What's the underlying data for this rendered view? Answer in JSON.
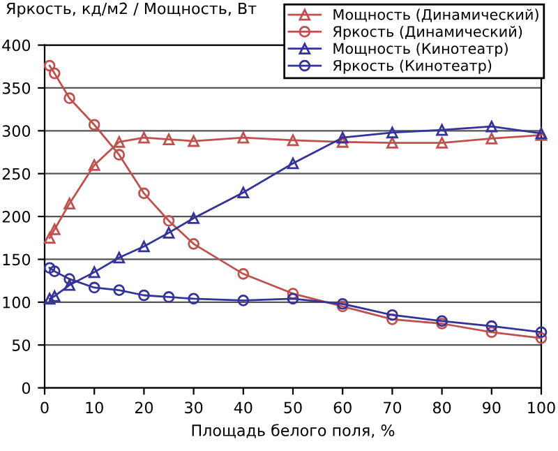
{
  "chart_data": {
    "type": "line",
    "ylabel": "Яркость, кд/м2 / Мощность, Вт",
    "xlabel": "Площадь белого поля, %",
    "x": [
      1,
      2,
      5,
      10,
      15,
      20,
      25,
      30,
      40,
      50,
      60,
      70,
      80,
      90,
      100
    ],
    "series": [
      {
        "name": "Мощность (Динамический)",
        "color": "#c0504d",
        "marker": "triangle",
        "values": [
          175,
          185,
          215,
          260,
          287,
          292,
          290,
          288,
          292,
          289,
          287,
          286,
          286,
          291,
          295
        ]
      },
      {
        "name": "Яркость (Динамический)",
        "color": "#c0504d",
        "marker": "circle",
        "values": [
          376,
          367,
          338,
          307,
          272,
          227,
          195,
          168,
          133,
          110,
          95,
          80,
          75,
          65,
          58
        ]
      },
      {
        "name": "Мощность (Кинотеатр)",
        "color": "#333399",
        "marker": "triangle",
        "values": [
          104,
          107,
          120,
          135,
          152,
          165,
          181,
          198,
          228,
          262,
          292,
          298,
          301,
          305,
          297
        ]
      },
      {
        "name": "Яркость (Кинотеатр)",
        "color": "#333399",
        "marker": "circle",
        "values": [
          140,
          136,
          127,
          117,
          114,
          108,
          106,
          104,
          102,
          104,
          98,
          85,
          78,
          72,
          65
        ]
      }
    ],
    "xlim": [
      0,
      100
    ],
    "ylim": [
      0,
      400
    ],
    "xticks": [
      0,
      10,
      20,
      30,
      40,
      50,
      60,
      70,
      80,
      90,
      100
    ],
    "yticks": [
      0,
      50,
      100,
      150,
      200,
      250,
      300,
      350,
      400
    ],
    "grid": "y",
    "legend": "top right"
  }
}
